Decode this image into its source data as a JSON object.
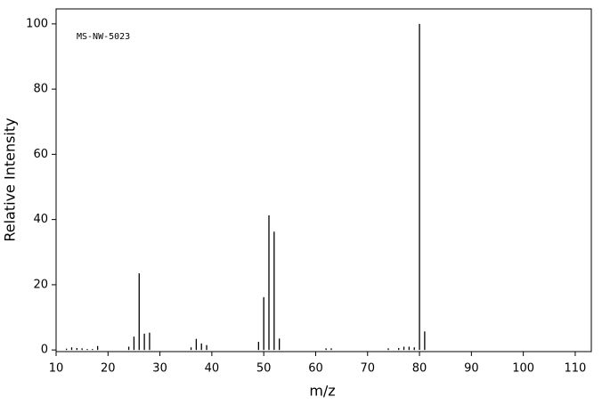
{
  "chart_data": {
    "type": "stem",
    "annotation": "MS-NW-5023",
    "x_label": "m/z",
    "y_label": "Relative Intensity",
    "color": "#000000",
    "x": [
      12,
      13,
      14,
      15,
      16,
      17,
      18,
      24,
      25,
      26,
      27,
      28,
      36,
      37,
      38,
      39,
      49,
      50,
      51,
      52,
      53,
      62,
      63,
      74,
      76,
      77,
      78,
      79,
      80,
      81
    ],
    "values": [
      0.4,
      0.8,
      0.6,
      0.5,
      0.3,
      0.3,
      1.2,
      1.0,
      4.1,
      23.5,
      5.0,
      5.3,
      0.8,
      3.4,
      2.0,
      1.5,
      2.5,
      16.2,
      41.3,
      36.3,
      3.5,
      0.5,
      0.5,
      0.5,
      0.6,
      1.0,
      1.0,
      0.8,
      100,
      5.7
    ],
    "xlim": [
      10,
      113.1
    ],
    "ylim": [
      -0.5,
      104.6
    ],
    "xticks": [
      10,
      20,
      30,
      40,
      50,
      60,
      70,
      80,
      90,
      100,
      110
    ],
    "yticks": [
      0,
      20,
      40,
      60,
      80,
      100
    ]
  }
}
